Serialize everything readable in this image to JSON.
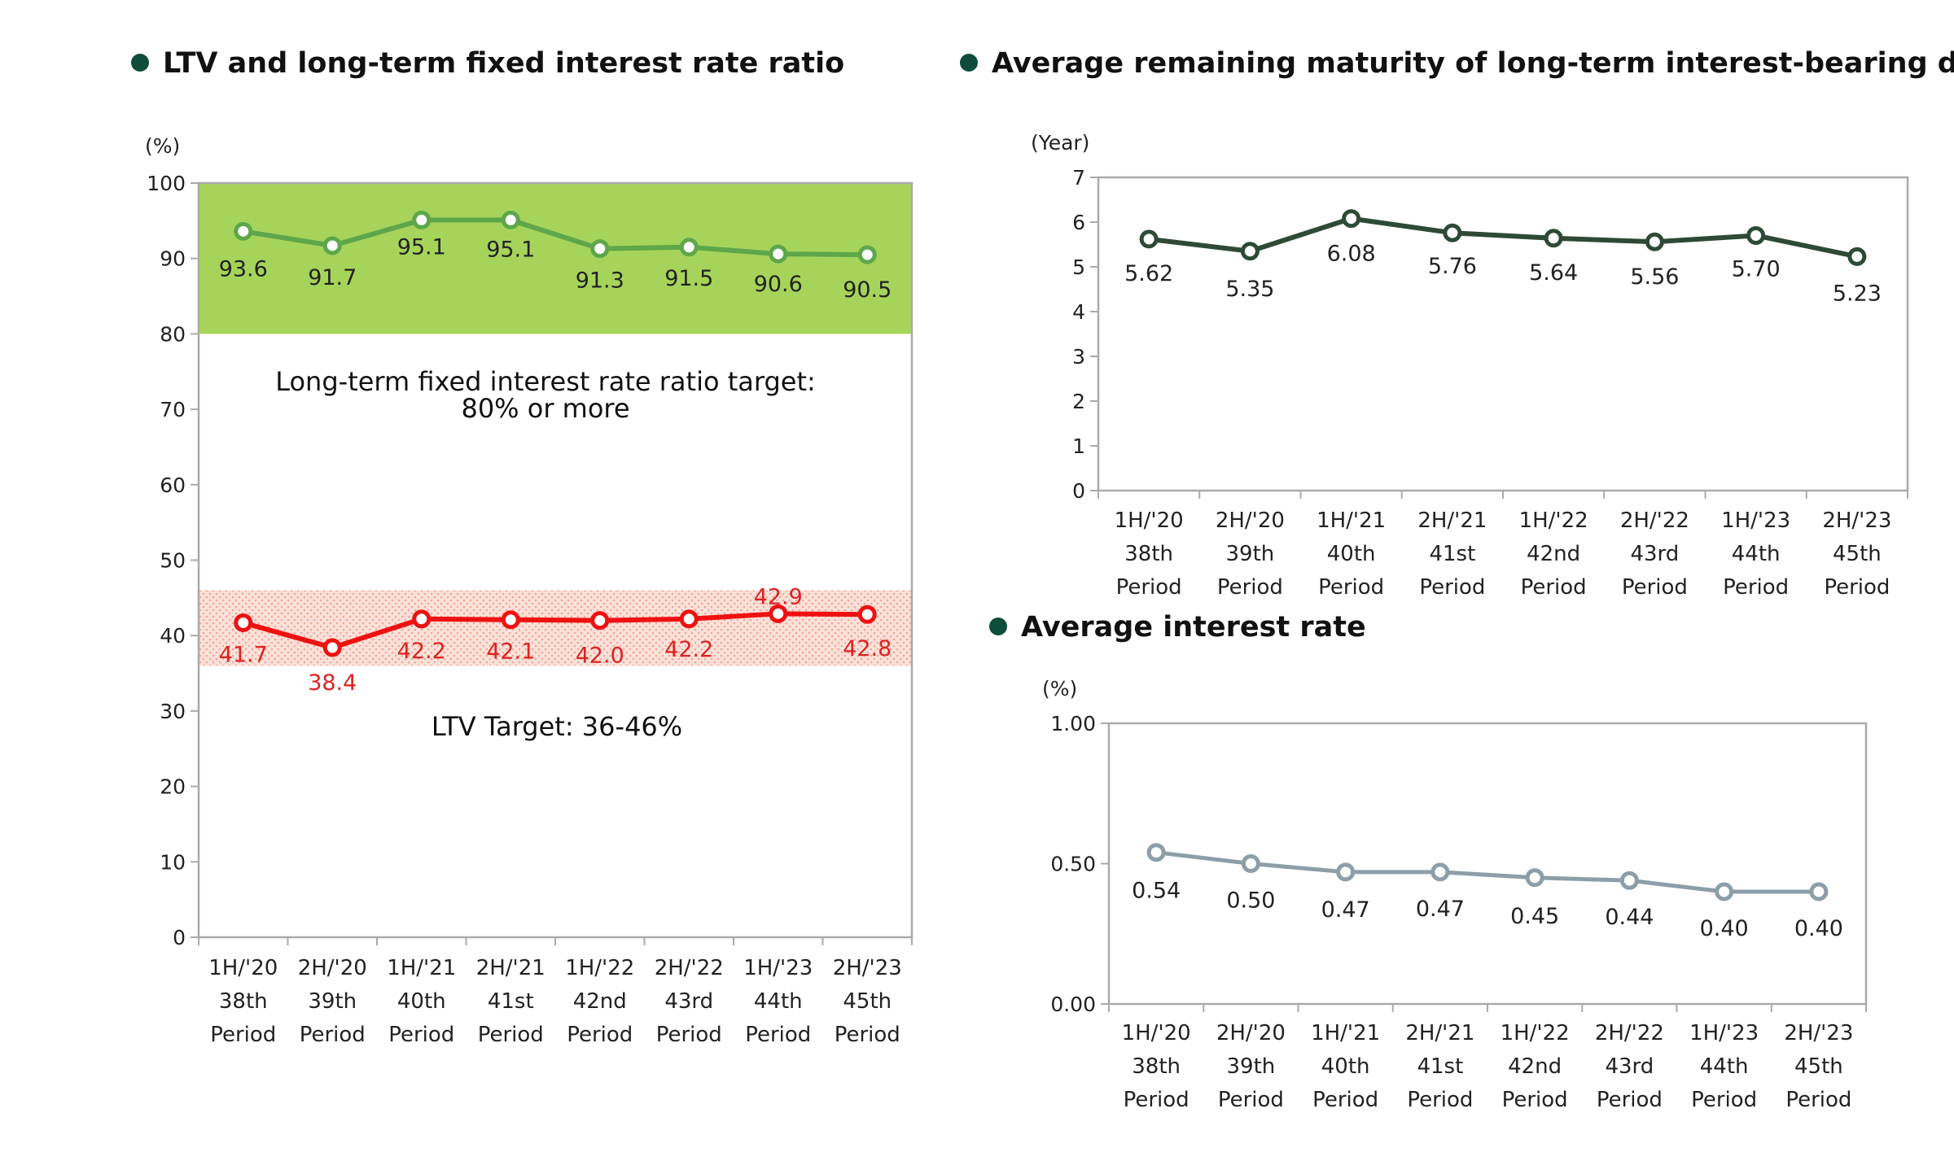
{
  "colors": {
    "bullet": "#0e4d3a",
    "ratio_line": "#5ea64a",
    "ltv_line": "#ee1111",
    "ltv_label": "#dd2222",
    "maturity_line": "#2e4a37",
    "rate_line": "#8c9ea8",
    "ratio_band": "#a6d45a",
    "ltv_band": "#f7c7bb",
    "frame": "#aaaaaa"
  },
  "categories": [
    [
      "1H/'20",
      "38th",
      "Period"
    ],
    [
      "2H/'20",
      "39th",
      "Period"
    ],
    [
      "1H/'21",
      "40th",
      "Period"
    ],
    [
      "2H/'21",
      "41st",
      "Period"
    ],
    [
      "1H/'22",
      "42nd",
      "Period"
    ],
    [
      "2H/'22",
      "43rd",
      "Period"
    ],
    [
      "1H/'23",
      "44th",
      "Period"
    ],
    [
      "2H/'23",
      "45th",
      "Period"
    ]
  ],
  "chart_data": [
    {
      "type": "line",
      "title": "LTV and long-term fixed interest rate ratio",
      "ylabel": "(%)",
      "ylim": [
        0,
        100
      ],
      "yticks": [
        "0",
        "10",
        "20",
        "30",
        "40",
        "50",
        "60",
        "70",
        "80",
        "90",
        "100"
      ],
      "series": [
        {
          "values": [
            93.6,
            91.7,
            95.1,
            95.1,
            91.3,
            91.5,
            90.6,
            90.5
          ],
          "labels": [
            "93.6",
            "91.7",
            "95.1",
            "95.1",
            "91.3",
            "91.5",
            "90.6",
            "90.5"
          ]
        },
        {
          "values": [
            41.7,
            38.4,
            42.2,
            42.1,
            42.0,
            42.2,
            42.9,
            42.8
          ],
          "labels": [
            "41.7",
            "38.4",
            "42.2",
            "42.1",
            "42.0",
            "42.2",
            "42.9",
            "42.8"
          ]
        }
      ],
      "bands": [
        {
          "from": 80,
          "to": 100
        },
        {
          "from": 36,
          "to": 46
        }
      ],
      "annotations": {
        "ratio_target_line1": "Long-term fixed interest rate ratio target:",
        "ratio_target_line2": "80% or more",
        "ltv_target": "LTV Target: 36-46%"
      },
      "grid": false
    },
    {
      "type": "line",
      "title": "Average remaining maturity of long-term interest-bearing debt",
      "ylabel": "(Year)",
      "ylim": [
        0,
        7
      ],
      "yticks": [
        "0",
        "1",
        "2",
        "3",
        "4",
        "5",
        "6",
        "7"
      ],
      "series": [
        {
          "values": [
            5.62,
            5.35,
            6.08,
            5.76,
            5.64,
            5.56,
            5.7,
            5.23
          ],
          "labels": [
            "5.62",
            "5.35",
            "6.08",
            "5.76",
            "5.64",
            "5.56",
            "5.70",
            "5.23"
          ]
        }
      ],
      "grid": false
    },
    {
      "type": "line",
      "title": "Average interest rate",
      "ylabel": "(%)",
      "ylim": [
        0,
        1
      ],
      "yticks": [
        "0.00",
        "0.50",
        "1.00"
      ],
      "series": [
        {
          "values": [
            0.54,
            0.5,
            0.47,
            0.47,
            0.45,
            0.44,
            0.4,
            0.4
          ],
          "labels": [
            "0.54",
            "0.50",
            "0.47",
            "0.47",
            "0.45",
            "0.44",
            "0.40",
            "0.40"
          ]
        }
      ],
      "grid": false
    }
  ]
}
